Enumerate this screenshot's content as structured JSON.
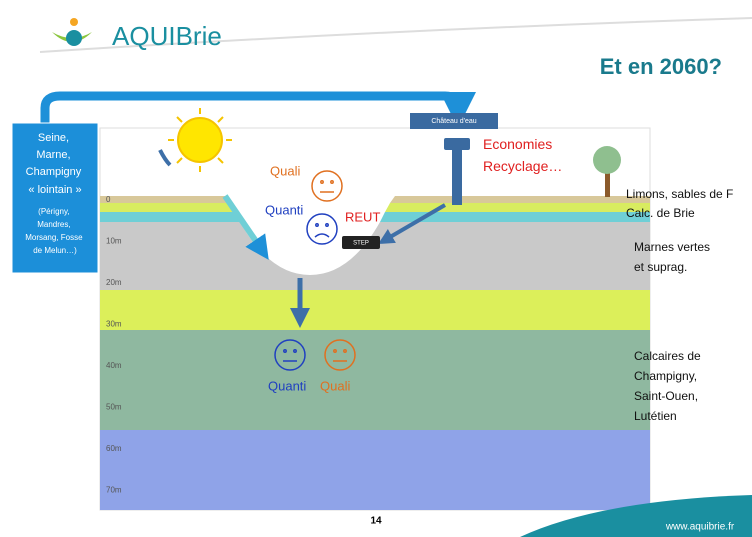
{
  "header": {
    "logo": "AQUIBrie",
    "title": "Et en 2060?"
  },
  "source_box": {
    "lines": [
      "Seine,",
      "Marne,",
      "Champigny",
      "« lointain »"
    ],
    "detail": [
      "(Périgny,",
      "Mandres,",
      "Morsang, Fosse",
      "de Melun…)"
    ]
  },
  "labels": {
    "chateau": "Château d'eau",
    "economies": [
      "Economies",
      "Recyclage…"
    ],
    "quali_top": "Quali",
    "quanti_top": "Quanti",
    "reut": "REUT",
    "step": "STEP",
    "quanti_bottom": "Quanti",
    "quali_bottom": "Quali"
  },
  "layers": [
    [
      "Limons, sables de F"
    ],
    [
      "Calc. de Brie"
    ],
    [
      "Marnes vertes",
      "et suprag."
    ],
    [
      "Calcaires de",
      "Champigny,",
      "Saint-Ouen,",
      "Lutétien"
    ]
  ],
  "depths": [
    "0",
    "10m",
    "20m",
    "30m",
    "40m",
    "50m",
    "60m",
    "70m"
  ],
  "footer": {
    "page": "14",
    "url": "www.aquibrie.fr"
  }
}
